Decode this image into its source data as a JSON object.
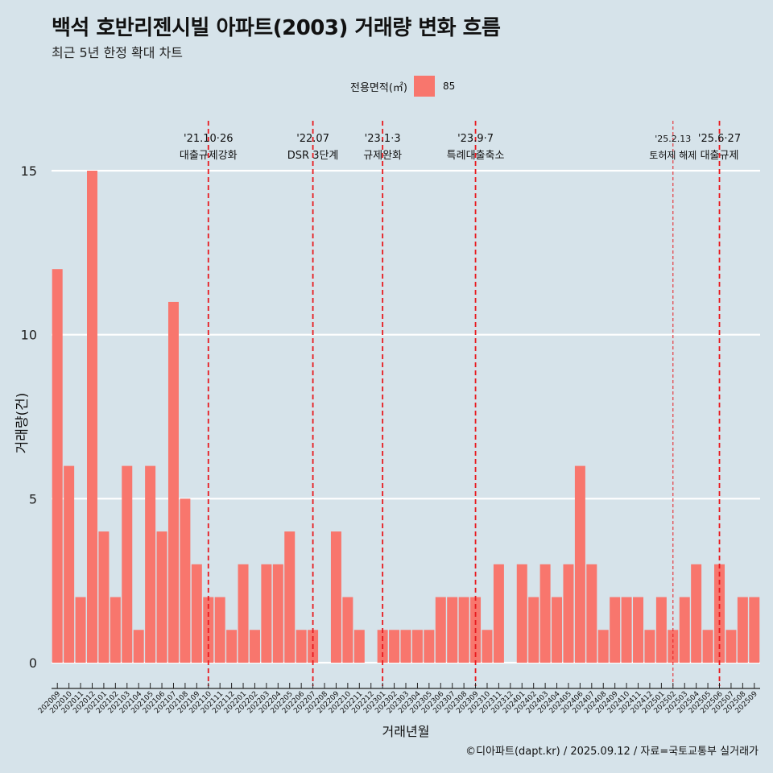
{
  "header": {
    "title": "백석 호반리젠시빌 아파트(2003) 거래량 변화 흐름",
    "subtitle": "최근 5년 한정 확대 차트"
  },
  "legend": {
    "title": "전용면적(㎡)",
    "items": [
      {
        "label": "85",
        "color": "#f8766d"
      }
    ]
  },
  "caption": "©디아파트(dapt.kr) / 2025.09.12 / 자료=국토교통부 실거래가",
  "colors": {
    "background": "#d6e3ea",
    "bar": "#f8766d",
    "grid": "#ffffff",
    "event_line": "#e8191e"
  },
  "chart_data": {
    "type": "bar",
    "xlabel": "거래년월",
    "ylabel": "거래량(건)",
    "ylim": [
      0,
      15
    ],
    "yticks": [
      0,
      5,
      10,
      15
    ],
    "grid": true,
    "legend_position": "top",
    "categories": [
      "202009",
      "202010",
      "202011",
      "202012",
      "202101",
      "202102",
      "202103",
      "202104",
      "202105",
      "202106",
      "202107",
      "202108",
      "202109",
      "202110",
      "202111",
      "202112",
      "202201",
      "202202",
      "202203",
      "202204",
      "202205",
      "202206",
      "202207",
      "202208",
      "202209",
      "202210",
      "202211",
      "202212",
      "202301",
      "202302",
      "202303",
      "202304",
      "202305",
      "202306",
      "202307",
      "202308",
      "202309",
      "202310",
      "202311",
      "202312",
      "202401",
      "202402",
      "202403",
      "202404",
      "202405",
      "202406",
      "202407",
      "202408",
      "202409",
      "202410",
      "202411",
      "202412",
      "202501",
      "202502",
      "202503",
      "202504",
      "202505",
      "202506",
      "202507",
      "202508",
      "202509"
    ],
    "series": [
      {
        "name": "85",
        "values": [
          12,
          6,
          2,
          15,
          4,
          2,
          6,
          1,
          6,
          4,
          11,
          5,
          3,
          2,
          2,
          1,
          3,
          1,
          3,
          3,
          4,
          1,
          1,
          0,
          4,
          2,
          1,
          0,
          1,
          1,
          1,
          1,
          1,
          2,
          2,
          2,
          2,
          1,
          3,
          0,
          3,
          2,
          3,
          2,
          3,
          6,
          3,
          1,
          2,
          2,
          2,
          1,
          2,
          1,
          2,
          3,
          1,
          3,
          1,
          2,
          2
        ]
      }
    ],
    "events": [
      {
        "line1": "'21.10·26",
        "line2": "대출규제강화",
        "category": "202110",
        "style": "dashed"
      },
      {
        "line1": "'22.07",
        "line2": "DSR 3단계",
        "category": "202207",
        "style": "dashed"
      },
      {
        "line1": "'23.1·3",
        "line2": "규제완화",
        "category": "202301",
        "style": "dashed"
      },
      {
        "line1": "'23.9·7",
        "line2": "특례대출축소",
        "category": "202309",
        "style": "dashed"
      },
      {
        "line1": "'25.2.13",
        "line2": "토허제 해제",
        "category": "202502",
        "style": "thin-dashed"
      },
      {
        "line1": "'25.6·27",
        "line2": "대출규제",
        "category": "202506",
        "style": "dashed"
      }
    ]
  }
}
